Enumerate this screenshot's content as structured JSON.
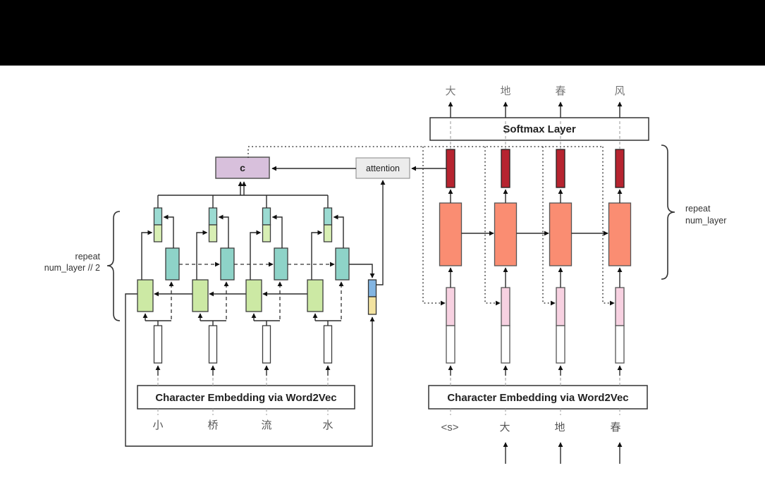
{
  "header": {
    "note_bar": ""
  },
  "colors": {
    "header_bar": "#000000",
    "context_box": "#d8c0dc",
    "attention_box": "#ececec",
    "encoder_forward_cell": "#8ed3c8",
    "encoder_backward_cell": "#cce9a4",
    "encoder_state_concat_top": "#9bdbd2",
    "encoder_state_concat_bottom": "#d8efb4",
    "final_state_forward": "#83b5e2",
    "final_state_backward": "#f3e3a0",
    "decoder_cell": "#fa8d72",
    "decoder_hidden_state": "#b62430",
    "decoder_context_concat": "#f7d1e1",
    "embedding_vector": "#ffffff"
  },
  "encoder": {
    "embedding_label": "Character Embedding via Word2Vec",
    "inputs": [
      "小",
      "桥",
      "流",
      "水"
    ],
    "context_label": "c",
    "attention_label": "attention",
    "repeat_label": [
      "repeat",
      "num_layer // 2"
    ]
  },
  "decoder": {
    "softmax_label": "Softmax Layer",
    "embedding_label": "Character Embedding via Word2Vec",
    "inputs": [
      "<s>",
      "大",
      "地",
      "春"
    ],
    "outputs": [
      "大",
      "地",
      "春",
      "风"
    ],
    "repeat_label": [
      "repeat",
      "num_layer"
    ]
  }
}
